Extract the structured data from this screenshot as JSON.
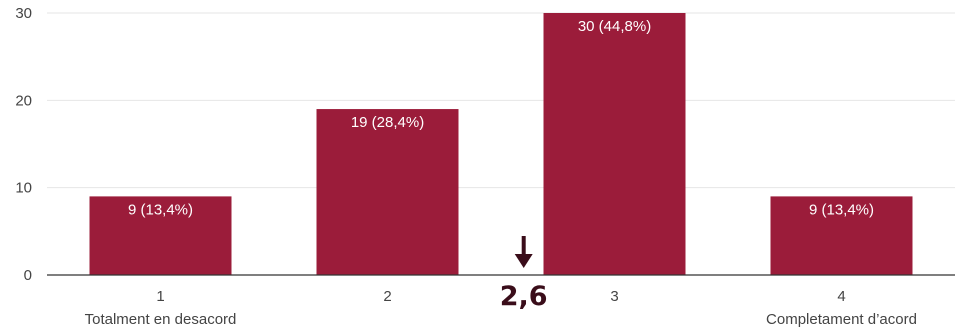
{
  "chart_data": {
    "type": "bar",
    "categories": [
      "1",
      "2",
      "3",
      "4"
    ],
    "category_sublabels": [
      "Totalment en desacord",
      "",
      "",
      "Completament d’acord"
    ],
    "values": [
      9,
      19,
      30,
      9
    ],
    "data_labels": [
      "9 (13,4%)",
      "19 (28,4%)",
      "30 (44,8%)",
      "9 (13,4%)"
    ],
    "yticks": [
      0,
      10,
      20,
      30
    ],
    "ylim": [
      0,
      30
    ],
    "grid": true,
    "legend": "none",
    "bar_color": "#9b1c3a",
    "mean_annotation": {
      "label": "2,6",
      "value": 2.6,
      "color": "#3a0d1a"
    }
  }
}
